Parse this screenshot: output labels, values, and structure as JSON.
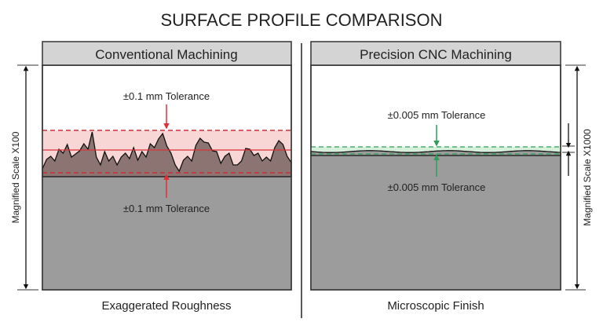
{
  "title": "SURFACE PROFILE COMPARISON",
  "left": {
    "header": "Conventional Machining",
    "tolerance_top": "±0.1 mm Tolerance",
    "tolerance_bottom": "±0.1 mm Tolerance",
    "scale_label": "Magnified Scale X100",
    "caption": "Exaggerated Roughness",
    "accent": "#e0303a"
  },
  "right": {
    "header": "Precision CNC Machining",
    "tolerance_top": "±0.005 mm Tolerance",
    "tolerance_bottom": "±0.005 mm Tolerance",
    "scale_label": "Magnified Scale X1000",
    "caption": "Microscopic Finish",
    "accent": "#2e9e58"
  }
}
